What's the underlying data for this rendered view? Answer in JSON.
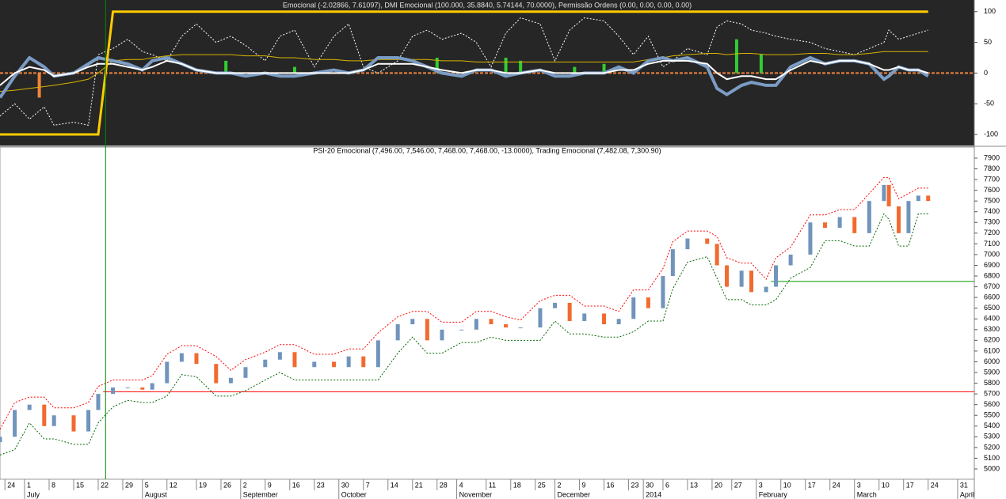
{
  "chart_data": [
    {
      "type": "line",
      "title": "Emocional (-2.02866, 7.61097), DMI Emocional (100.000, 35.8840, 5.74144, 70.0000), Permissão Ordens (0.00, 0.00, 0.00, 0.00)",
      "xlim": [
        0,
        198.4
      ],
      "ylim": [
        -118,
        119
      ],
      "yticks": [
        100,
        50,
        0,
        -50,
        -100
      ],
      "x": [
        0,
        3,
        6,
        9,
        11,
        15,
        18,
        20,
        23,
        26,
        29,
        31,
        34,
        37,
        40,
        44,
        47,
        50,
        54,
        57,
        60,
        64,
        68,
        71,
        74,
        77,
        81,
        84,
        87,
        90,
        94,
        97,
        100,
        103,
        106,
        110,
        113,
        116,
        119,
        123,
        126,
        129,
        132,
        135,
        137,
        140,
        144,
        146,
        148,
        151,
        153,
        156,
        158,
        161,
        165,
        168,
        171,
        174,
        177,
        180,
        181,
        183,
        185,
        187,
        189
      ],
      "series": [
        {
          "color": "#ffffff",
          "style": "dotted",
          "values": [
            -70,
            -50,
            -75,
            -55,
            -85,
            -80,
            -85,
            30,
            40,
            55,
            35,
            30,
            20,
            60,
            80,
            50,
            60,
            45,
            20,
            60,
            70,
            10,
            60,
            80,
            10,
            0,
            20,
            60,
            70,
            55,
            65,
            50,
            10,
            65,
            90,
            80,
            20,
            70,
            90,
            85,
            60,
            30,
            60,
            10,
            20,
            40,
            30,
            75,
            85,
            80,
            70,
            65,
            60,
            55,
            50,
            40,
            35,
            30,
            40,
            50,
            70,
            55,
            60,
            65,
            70
          ]
        },
        {
          "color": "#d9b400",
          "style": "thin",
          "values": [
            -30,
            -28,
            -25,
            -22,
            -20,
            -15,
            -10,
            0,
            20,
            22,
            22,
            25,
            28,
            30,
            30,
            30,
            30,
            28,
            28,
            25,
            25,
            22,
            22,
            20,
            20,
            22,
            22,
            22,
            22,
            20,
            20,
            18,
            18,
            18,
            18,
            18,
            18,
            18,
            18,
            18,
            18,
            18,
            22,
            25,
            28,
            30,
            32,
            32,
            30,
            32,
            32,
            30,
            30,
            30,
            32,
            32,
            30,
            30,
            32,
            35,
            35,
            35,
            35,
            35,
            35
          ]
        },
        {
          "color": "#7b9cc4",
          "style": "thick",
          "values": [
            -40,
            -5,
            25,
            10,
            -5,
            0,
            15,
            25,
            20,
            15,
            5,
            20,
            25,
            15,
            5,
            0,
            0,
            -5,
            0,
            -5,
            -5,
            0,
            5,
            0,
            5,
            25,
            25,
            20,
            10,
            0,
            -5,
            5,
            5,
            -5,
            0,
            5,
            -5,
            -5,
            0,
            0,
            10,
            0,
            20,
            25,
            20,
            25,
            10,
            -25,
            -35,
            -20,
            -15,
            -20,
            -20,
            10,
            25,
            15,
            20,
            20,
            15,
            -10,
            -5,
            10,
            5,
            5,
            -5
          ]
        },
        {
          "color": "#ffffff",
          "style": "medium",
          "values": [
            -20,
            0,
            10,
            5,
            -5,
            0,
            10,
            15,
            15,
            10,
            5,
            10,
            20,
            15,
            5,
            0,
            0,
            0,
            0,
            0,
            0,
            0,
            0,
            0,
            5,
            15,
            15,
            15,
            10,
            5,
            0,
            5,
            5,
            0,
            0,
            5,
            0,
            0,
            0,
            0,
            5,
            5,
            15,
            20,
            20,
            20,
            15,
            0,
            -10,
            -5,
            -5,
            -10,
            -10,
            5,
            20,
            15,
            20,
            20,
            15,
            5,
            5,
            10,
            5,
            5,
            0
          ]
        },
        {
          "color": "#ffcc00",
          "style": "heavy",
          "values": [
            -100,
            -100,
            -100,
            -100,
            -100,
            -100,
            -100,
            -100,
            100,
            100,
            100,
            100,
            100,
            100,
            100,
            100,
            100,
            100,
            100,
            100,
            100,
            100,
            100,
            100,
            100,
            100,
            100,
            100,
            100,
            100,
            100,
            100,
            100,
            100,
            100,
            100,
            100,
            100,
            100,
            100,
            100,
            100,
            100,
            100,
            100,
            100,
            100,
            100,
            100,
            100,
            100,
            100,
            100,
            100,
            100,
            100,
            100,
            100,
            100,
            100,
            100,
            100,
            100,
            100,
            100
          ]
        }
      ],
      "bars": {
        "x": [
          8,
          46,
          60,
          89,
          103,
          106,
          117,
          123,
          150,
          155
        ],
        "values": [
          -40,
          20,
          10,
          25,
          25,
          20,
          10,
          15,
          55,
          30
        ],
        "colors": [
          "#f0843c",
          "#33cc33",
          "#33cc33",
          "#33cc33",
          "#33cc33",
          "#33cc33",
          "#33cc33",
          "#33cc33",
          "#33cc33",
          "#33cc33"
        ]
      },
      "hlines": [
        {
          "value": 0,
          "color": "#f0843c"
        }
      ]
    },
    {
      "type": "candlestick",
      "title": "PSI-20 Emocional (7,496.00, 7,546.00, 7,468.00, 7,468.00, -13.0000), Trading Emocional (7,482.08, 7,300.90)",
      "xlim": [
        0,
        198.4
      ],
      "ylim": [
        4904,
        8003
      ],
      "yticks": [
        5000,
        5100,
        5200,
        5300,
        5400,
        5500,
        5600,
        5700,
        5800,
        5900,
        6000,
        6100,
        6200,
        6300,
        6400,
        6500,
        6600,
        6700,
        6800,
        6900,
        7000,
        7100,
        7200,
        7300,
        7400,
        7500,
        7600,
        7700,
        7800,
        7900
      ],
      "xticks": [
        {
          "value": 1,
          "label": "24"
        },
        {
          "value": 5,
          "label": "1"
        },
        {
          "value": 10,
          "label": "8"
        },
        {
          "value": 15,
          "label": "15"
        },
        {
          "value": 20,
          "label": "22"
        },
        {
          "value": 25,
          "label": "29"
        },
        {
          "value": 29,
          "label": "5"
        },
        {
          "value": 34,
          "label": "12"
        },
        {
          "value": 40,
          "label": "19"
        },
        {
          "value": 45,
          "label": "26"
        },
        {
          "value": 49,
          "label": "2"
        },
        {
          "value": 54,
          "label": "9"
        },
        {
          "value": 59,
          "label": "16"
        },
        {
          "value": 64,
          "label": "23"
        },
        {
          "value": 69,
          "label": "30"
        },
        {
          "value": 74,
          "label": "7"
        },
        {
          "value": 79,
          "label": "14"
        },
        {
          "value": 84,
          "label": "21"
        },
        {
          "value": 89,
          "label": "28"
        },
        {
          "value": 93,
          "label": "4"
        },
        {
          "value": 99,
          "label": "11"
        },
        {
          "value": 104,
          "label": "18"
        },
        {
          "value": 109,
          "label": "25"
        },
        {
          "value": 113,
          "label": "2"
        },
        {
          "value": 118,
          "label": "9"
        },
        {
          "value": 123,
          "label": "16"
        },
        {
          "value": 128,
          "label": "23"
        },
        {
          "value": 131,
          "label": "30"
        },
        {
          "value": 135,
          "label": "6"
        },
        {
          "value": 140,
          "label": "13"
        },
        {
          "value": 145,
          "label": "20"
        },
        {
          "value": 149,
          "label": "27"
        },
        {
          "value": 154,
          "label": "3"
        },
        {
          "value": 159,
          "label": "10"
        },
        {
          "value": 164,
          "label": "17"
        },
        {
          "value": 169,
          "label": "24"
        },
        {
          "value": 174,
          "label": "3"
        },
        {
          "value": 179,
          "label": "10"
        },
        {
          "value": 184,
          "label": "17"
        },
        {
          "value": 189,
          "label": "24"
        },
        {
          "value": 195,
          "label": "31"
        }
      ],
      "months": [
        {
          "value": 5,
          "label": "July"
        },
        {
          "value": 29,
          "label": "August"
        },
        {
          "value": 49,
          "label": "September"
        },
        {
          "value": 69,
          "label": "October"
        },
        {
          "value": 93,
          "label": "November"
        },
        {
          "value": 113,
          "label": "December"
        },
        {
          "value": 131,
          "label": "2014"
        },
        {
          "value": 154,
          "label": "February"
        },
        {
          "value": 174,
          "label": "March"
        },
        {
          "value": 195,
          "label": "April"
        }
      ],
      "x": [
        0,
        3,
        6,
        9,
        11,
        15,
        18,
        20,
        23,
        26,
        29,
        31,
        34,
        37,
        40,
        44,
        47,
        50,
        54,
        57,
        60,
        64,
        68,
        71,
        74,
        77,
        81,
        84,
        87,
        90,
        94,
        97,
        100,
        103,
        106,
        110,
        113,
        116,
        119,
        123,
        126,
        129,
        132,
        135,
        137,
        140,
        144,
        146,
        148,
        151,
        153,
        156,
        158,
        161,
        165,
        168,
        171,
        174,
        177,
        180,
        181,
        183,
        185,
        187,
        189
      ],
      "open": [
        5250,
        5300,
        5550,
        5600,
        5400,
        5500,
        5350,
        5550,
        5700,
        5760,
        5760,
        5740,
        5800,
        6000,
        6080,
        5980,
        5800,
        5850,
        5950,
        6020,
        6090,
        5950,
        6000,
        5950,
        6050,
        5950,
        6200,
        6350,
        6400,
        6200,
        6300,
        6300,
        6400,
        6350,
        6320,
        6320,
        6500,
        6550,
        6380,
        6450,
        6350,
        6400,
        6600,
        6500,
        6800,
        7050,
        7150,
        7100,
        6900,
        6700,
        6850,
        6650,
        6700,
        6900,
        7000,
        7300,
        7250,
        7350,
        7200,
        7500,
        7650,
        7450,
        7200,
        7500,
        7550
      ],
      "close": [
        5300,
        5550,
        5600,
        5400,
        5500,
        5350,
        5550,
        5700,
        5760,
        5760,
        5740,
        5800,
        6000,
        6080,
        5980,
        5800,
        5850,
        5950,
        6020,
        6090,
        5950,
        6000,
        5950,
        6050,
        5950,
        6200,
        6350,
        6400,
        6200,
        6300,
        6300,
        6400,
        6350,
        6320,
        6320,
        6500,
        6550,
        6380,
        6450,
        6350,
        6400,
        6600,
        6500,
        6800,
        7050,
        7150,
        7100,
        6900,
        6700,
        6850,
        6650,
        6700,
        6900,
        7000,
        7300,
        7250,
        7350,
        7200,
        7500,
        7650,
        7450,
        7200,
        7500,
        7550,
        7500
      ],
      "up_color": "#7094bc",
      "down_color": "#f26a2e",
      "series": [
        {
          "color": "#ff0000",
          "values": [
            5370,
            5620,
            5670,
            5670,
            5570,
            5570,
            5620,
            5770,
            5830,
            5830,
            5830,
            5870,
            6070,
            6150,
            6150,
            6050,
            5920,
            6020,
            6090,
            6160,
            6160,
            6070,
            6070,
            6120,
            6120,
            6270,
            6420,
            6470,
            6470,
            6370,
            6370,
            6470,
            6470,
            6420,
            6390,
            6570,
            6620,
            6620,
            6520,
            6520,
            6470,
            6670,
            6670,
            6870,
            7120,
            7220,
            7220,
            7170,
            6970,
            6920,
            6920,
            6770,
            6970,
            7070,
            7370,
            7370,
            7420,
            7420,
            7570,
            7720,
            7720,
            7520,
            7570,
            7620,
            7620
          ]
        },
        {
          "color": "#006600",
          "values": [
            5130,
            5180,
            5430,
            5280,
            5280,
            5230,
            5230,
            5430,
            5580,
            5640,
            5620,
            5620,
            5680,
            5880,
            5860,
            5680,
            5680,
            5730,
            5830,
            5900,
            5830,
            5830,
            5830,
            5830,
            5830,
            5830,
            6080,
            6230,
            6080,
            6080,
            6180,
            6180,
            6230,
            6200,
            6200,
            6200,
            6380,
            6260,
            6260,
            6230,
            6230,
            6280,
            6380,
            6380,
            6680,
            6930,
            6980,
            6780,
            6580,
            6580,
            6530,
            6530,
            6580,
            6780,
            6880,
            7130,
            7130,
            7080,
            7080,
            7380,
            7330,
            7080,
            7080,
            7380,
            7380
          ]
        }
      ],
      "hlines": [
        {
          "value": 5720,
          "color": "#ff0000",
          "from": 21
        },
        {
          "value": 6750,
          "color": "#009900",
          "from": 157
        }
      ],
      "vlines": [
        {
          "value": 21.5,
          "color": "#008800"
        }
      ]
    }
  ]
}
